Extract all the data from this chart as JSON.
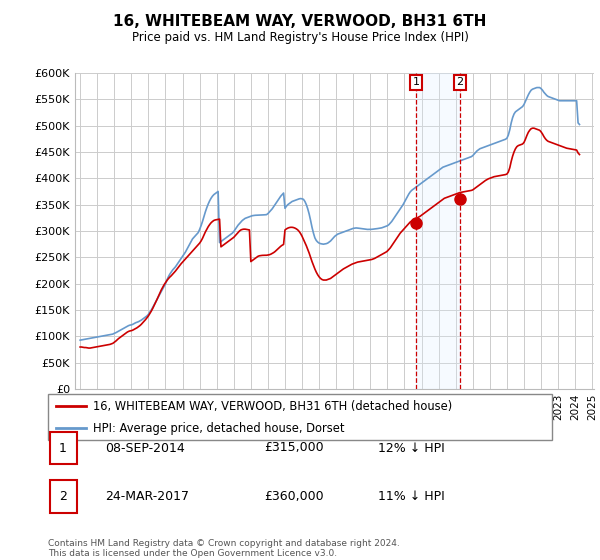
{
  "title": "16, WHITEBEAM WAY, VERWOOD, BH31 6TH",
  "subtitle": "Price paid vs. HM Land Registry's House Price Index (HPI)",
  "legend_label_red": "16, WHITEBEAM WAY, VERWOOD, BH31 6TH (detached house)",
  "legend_label_blue": "HPI: Average price, detached house, Dorset",
  "annotation1_date": "08-SEP-2014",
  "annotation1_price": "£315,000",
  "annotation1_hpi": "12% ↓ HPI",
  "annotation2_date": "24-MAR-2017",
  "annotation2_price": "£360,000",
  "annotation2_hpi": "11% ↓ HPI",
  "footer": "Contains HM Land Registry data © Crown copyright and database right 2024.\nThis data is licensed under the Open Government Licence v3.0.",
  "ylim": [
    0,
    600000
  ],
  "yticks": [
    0,
    50000,
    100000,
    150000,
    200000,
    250000,
    300000,
    350000,
    400000,
    450000,
    500000,
    550000,
    600000
  ],
  "ytick_labels": [
    "£0",
    "£50K",
    "£100K",
    "£150K",
    "£200K",
    "£250K",
    "£300K",
    "£350K",
    "£400K",
    "£450K",
    "£500K",
    "£550K",
    "£600K"
  ],
  "red_color": "#cc0000",
  "blue_color": "#6699cc",
  "vline_color": "#cc0000",
  "shade_color": "#ddeeff",
  "hpi_x": [
    1995.0,
    1995.083,
    1995.167,
    1995.25,
    1995.333,
    1995.417,
    1995.5,
    1995.583,
    1995.667,
    1995.75,
    1995.833,
    1995.917,
    1996.0,
    1996.083,
    1996.167,
    1996.25,
    1996.333,
    1996.417,
    1996.5,
    1996.583,
    1996.667,
    1996.75,
    1996.833,
    1996.917,
    1997.0,
    1997.083,
    1997.167,
    1997.25,
    1997.333,
    1997.417,
    1997.5,
    1997.583,
    1997.667,
    1997.75,
    1997.833,
    1997.917,
    1998.0,
    1998.083,
    1998.167,
    1998.25,
    1998.333,
    1998.417,
    1998.5,
    1998.583,
    1998.667,
    1998.75,
    1998.833,
    1998.917,
    1999.0,
    1999.083,
    1999.167,
    1999.25,
    1999.333,
    1999.417,
    1999.5,
    1999.583,
    1999.667,
    1999.75,
    1999.833,
    1999.917,
    2000.0,
    2000.083,
    2000.167,
    2000.25,
    2000.333,
    2000.417,
    2000.5,
    2000.583,
    2000.667,
    2000.75,
    2000.833,
    2000.917,
    2001.0,
    2001.083,
    2001.167,
    2001.25,
    2001.333,
    2001.417,
    2001.5,
    2001.583,
    2001.667,
    2001.75,
    2001.833,
    2001.917,
    2002.0,
    2002.083,
    2002.167,
    2002.25,
    2002.333,
    2002.417,
    2002.5,
    2002.583,
    2002.667,
    2002.75,
    2002.833,
    2002.917,
    2003.0,
    2003.083,
    2003.167,
    2003.25,
    2003.333,
    2003.417,
    2003.5,
    2003.583,
    2003.667,
    2003.75,
    2003.833,
    2003.917,
    2004.0,
    2004.083,
    2004.167,
    2004.25,
    2004.333,
    2004.417,
    2004.5,
    2004.583,
    2004.667,
    2004.75,
    2004.833,
    2004.917,
    2005.0,
    2005.083,
    2005.167,
    2005.25,
    2005.333,
    2005.417,
    2005.5,
    2005.583,
    2005.667,
    2005.75,
    2005.833,
    2005.917,
    2006.0,
    2006.083,
    2006.167,
    2006.25,
    2006.333,
    2006.417,
    2006.5,
    2006.583,
    2006.667,
    2006.75,
    2006.833,
    2006.917,
    2007.0,
    2007.083,
    2007.167,
    2007.25,
    2007.333,
    2007.417,
    2007.5,
    2007.583,
    2007.667,
    2007.75,
    2007.833,
    2007.917,
    2008.0,
    2008.083,
    2008.167,
    2008.25,
    2008.333,
    2008.417,
    2008.5,
    2008.583,
    2008.667,
    2008.75,
    2008.833,
    2008.917,
    2009.0,
    2009.083,
    2009.167,
    2009.25,
    2009.333,
    2009.417,
    2009.5,
    2009.583,
    2009.667,
    2009.75,
    2009.833,
    2009.917,
    2010.0,
    2010.083,
    2010.167,
    2010.25,
    2010.333,
    2010.417,
    2010.5,
    2010.583,
    2010.667,
    2010.75,
    2010.833,
    2010.917,
    2011.0,
    2011.083,
    2011.167,
    2011.25,
    2011.333,
    2011.417,
    2011.5,
    2011.583,
    2011.667,
    2011.75,
    2011.833,
    2011.917,
    2012.0,
    2012.083,
    2012.167,
    2012.25,
    2012.333,
    2012.417,
    2012.5,
    2012.583,
    2012.667,
    2012.75,
    2012.833,
    2012.917,
    2013.0,
    2013.083,
    2013.167,
    2013.25,
    2013.333,
    2013.417,
    2013.5,
    2013.583,
    2013.667,
    2013.75,
    2013.833,
    2013.917,
    2014.0,
    2014.083,
    2014.167,
    2014.25,
    2014.333,
    2014.417,
    2014.5,
    2014.583,
    2014.667,
    2014.75,
    2014.833,
    2014.917,
    2015.0,
    2015.083,
    2015.167,
    2015.25,
    2015.333,
    2015.417,
    2015.5,
    2015.583,
    2015.667,
    2015.75,
    2015.833,
    2015.917,
    2016.0,
    2016.083,
    2016.167,
    2016.25,
    2016.333,
    2016.417,
    2016.5,
    2016.583,
    2016.667,
    2016.75,
    2016.833,
    2016.917,
    2017.0,
    2017.083,
    2017.167,
    2017.25,
    2017.333,
    2017.417,
    2017.5,
    2017.583,
    2017.667,
    2017.75,
    2017.833,
    2017.917,
    2018.0,
    2018.083,
    2018.167,
    2018.25,
    2018.333,
    2018.417,
    2018.5,
    2018.583,
    2018.667,
    2018.75,
    2018.833,
    2018.917,
    2019.0,
    2019.083,
    2019.167,
    2019.25,
    2019.333,
    2019.417,
    2019.5,
    2019.583,
    2019.667,
    2019.75,
    2019.833,
    2019.917,
    2020.0,
    2020.083,
    2020.167,
    2020.25,
    2020.333,
    2020.417,
    2020.5,
    2020.583,
    2020.667,
    2020.75,
    2020.833,
    2020.917,
    2021.0,
    2021.083,
    2021.167,
    2021.25,
    2021.333,
    2021.417,
    2021.5,
    2021.583,
    2021.667,
    2021.75,
    2021.833,
    2021.917,
    2022.0,
    2022.083,
    2022.167,
    2022.25,
    2022.333,
    2022.417,
    2022.5,
    2022.583,
    2022.667,
    2022.75,
    2022.833,
    2022.917,
    2023.0,
    2023.083,
    2023.167,
    2023.25,
    2023.333,
    2023.417,
    2023.5,
    2023.583,
    2023.667,
    2023.75,
    2023.833,
    2023.917,
    2024.0,
    2024.083,
    2024.167,
    2024.25
  ],
  "hpi_y": [
    93000,
    93500,
    94000,
    94500,
    95000,
    95500,
    96000,
    96500,
    97000,
    97500,
    98000,
    98500,
    99000,
    99500,
    100000,
    100500,
    101000,
    101500,
    102000,
    102500,
    103000,
    103500,
    104000,
    104500,
    106000,
    107000,
    108500,
    110000,
    111500,
    113000,
    114500,
    116000,
    117500,
    119000,
    120500,
    121500,
    122000,
    123000,
    124500,
    126000,
    127000,
    128000,
    129500,
    131000,
    133000,
    135000,
    137000,
    139000,
    142000,
    146000,
    150000,
    155000,
    160000,
    165000,
    170000,
    175000,
    180000,
    185000,
    190000,
    195000,
    200000,
    207000,
    213000,
    218000,
    222000,
    226000,
    229000,
    232000,
    236000,
    240000,
    244000,
    248000,
    252000,
    256000,
    260000,
    265000,
    270000,
    275000,
    280000,
    285000,
    288000,
    291000,
    294000,
    297000,
    303000,
    310000,
    318000,
    327000,
    336000,
    344000,
    351000,
    357000,
    362000,
    366000,
    369000,
    371000,
    373000,
    375000,
    278000,
    280000,
    282000,
    284000,
    286000,
    288000,
    290000,
    292000,
    294000,
    296000,
    299000,
    303000,
    307000,
    311000,
    314000,
    317000,
    320000,
    322000,
    324000,
    325000,
    326000,
    327000,
    328000,
    329000,
    329500,
    329800,
    329900,
    330000,
    330000,
    330200,
    330400,
    330600,
    330800,
    331000,
    333000,
    336000,
    339000,
    342000,
    346000,
    350000,
    354000,
    358000,
    362000,
    366000,
    369000,
    372000,
    343000,
    347000,
    350000,
    352000,
    354000,
    356000,
    357000,
    358000,
    359000,
    360000,
    361000,
    361500,
    361000,
    360000,
    356000,
    350000,
    342000,
    332000,
    320000,
    307000,
    296000,
    287000,
    282000,
    279000,
    277000,
    276000,
    275500,
    275000,
    275500,
    276000,
    277000,
    279000,
    281000,
    284000,
    287000,
    290000,
    292000,
    294000,
    295000,
    296000,
    297000,
    298000,
    299000,
    300000,
    301000,
    302000,
    303000,
    304000,
    305000,
    305500,
    305800,
    305600,
    305200,
    304800,
    304400,
    304000,
    303600,
    303200,
    303000,
    303000,
    303000,
    303200,
    303500,
    303800,
    304200,
    304600,
    305000,
    305500,
    306000,
    307000,
    308000,
    309000,
    310000,
    312000,
    315000,
    318000,
    322000,
    326000,
    330000,
    334000,
    338000,
    342000,
    346000,
    350000,
    355000,
    360000,
    365000,
    370000,
    374000,
    377000,
    379000,
    381000,
    383000,
    385000,
    387000,
    389000,
    391000,
    393000,
    395000,
    397000,
    399000,
    401000,
    403000,
    405000,
    407000,
    409000,
    411000,
    413000,
    415000,
    417000,
    419000,
    421000,
    422000,
    423000,
    424000,
    425000,
    426000,
    427000,
    428000,
    429000,
    430000,
    431000,
    432000,
    433000,
    434000,
    435000,
    436000,
    437000,
    438000,
    439000,
    440000,
    441000,
    443000,
    446000,
    449000,
    452000,
    454000,
    456000,
    457000,
    458000,
    459000,
    460000,
    461000,
    462000,
    463000,
    464000,
    465000,
    466000,
    467000,
    468000,
    469000,
    470000,
    471000,
    472000,
    473000,
    474000,
    476000,
    482000,
    492000,
    505000,
    515000,
    522000,
    526000,
    528000,
    530000,
    532000,
    534000,
    536000,
    540000,
    546000,
    552000,
    558000,
    563000,
    567000,
    569000,
    570000,
    571000,
    572000,
    572000,
    572000,
    570000,
    567000,
    563000,
    560000,
    557000,
    555000,
    554000,
    553000,
    552000,
    551000,
    550000,
    549000,
    548000,
    547000,
    547000,
    547000,
    547000,
    547000,
    547000,
    547000,
    547000,
    547000,
    547000,
    547000,
    547000,
    547000,
    505000,
    502000
  ],
  "red_x": [
    1995.0,
    1995.083,
    1995.167,
    1995.25,
    1995.333,
    1995.417,
    1995.5,
    1995.583,
    1995.667,
    1995.75,
    1995.833,
    1995.917,
    1996.0,
    1996.083,
    1996.167,
    1996.25,
    1996.333,
    1996.417,
    1996.5,
    1996.583,
    1996.667,
    1996.75,
    1996.833,
    1996.917,
    1997.0,
    1997.083,
    1997.167,
    1997.25,
    1997.333,
    1997.417,
    1997.5,
    1997.583,
    1997.667,
    1997.75,
    1997.833,
    1997.917,
    1998.0,
    1998.083,
    1998.167,
    1998.25,
    1998.333,
    1998.417,
    1998.5,
    1998.583,
    1998.667,
    1998.75,
    1998.833,
    1998.917,
    1999.0,
    1999.083,
    1999.167,
    1999.25,
    1999.333,
    1999.417,
    1999.5,
    1999.583,
    1999.667,
    1999.75,
    1999.833,
    1999.917,
    2000.0,
    2000.083,
    2000.167,
    2000.25,
    2000.333,
    2000.417,
    2000.5,
    2000.583,
    2000.667,
    2000.75,
    2000.833,
    2000.917,
    2001.0,
    2001.083,
    2001.167,
    2001.25,
    2001.333,
    2001.417,
    2001.5,
    2001.583,
    2001.667,
    2001.75,
    2001.833,
    2001.917,
    2002.0,
    2002.083,
    2002.167,
    2002.25,
    2002.333,
    2002.417,
    2002.5,
    2002.583,
    2002.667,
    2002.75,
    2002.833,
    2002.917,
    2003.0,
    2003.083,
    2003.167,
    2003.25,
    2003.333,
    2003.417,
    2003.5,
    2003.583,
    2003.667,
    2003.75,
    2003.833,
    2003.917,
    2004.0,
    2004.083,
    2004.167,
    2004.25,
    2004.333,
    2004.417,
    2004.5,
    2004.583,
    2004.667,
    2004.75,
    2004.833,
    2004.917,
    2005.0,
    2005.083,
    2005.167,
    2005.25,
    2005.333,
    2005.417,
    2005.5,
    2005.583,
    2005.667,
    2005.75,
    2005.833,
    2005.917,
    2006.0,
    2006.083,
    2006.167,
    2006.25,
    2006.333,
    2006.417,
    2006.5,
    2006.583,
    2006.667,
    2006.75,
    2006.833,
    2006.917,
    2007.0,
    2007.083,
    2007.167,
    2007.25,
    2007.333,
    2007.417,
    2007.5,
    2007.583,
    2007.667,
    2007.75,
    2007.833,
    2007.917,
    2008.0,
    2008.083,
    2008.167,
    2008.25,
    2008.333,
    2008.417,
    2008.5,
    2008.583,
    2008.667,
    2008.75,
    2008.833,
    2008.917,
    2009.0,
    2009.083,
    2009.167,
    2009.25,
    2009.333,
    2009.417,
    2009.5,
    2009.583,
    2009.667,
    2009.75,
    2009.833,
    2009.917,
    2010.0,
    2010.083,
    2010.167,
    2010.25,
    2010.333,
    2010.417,
    2010.5,
    2010.583,
    2010.667,
    2010.75,
    2010.833,
    2010.917,
    2011.0,
    2011.083,
    2011.167,
    2011.25,
    2011.333,
    2011.417,
    2011.5,
    2011.583,
    2011.667,
    2011.75,
    2011.833,
    2011.917,
    2012.0,
    2012.083,
    2012.167,
    2012.25,
    2012.333,
    2012.417,
    2012.5,
    2012.583,
    2012.667,
    2012.75,
    2012.833,
    2012.917,
    2013.0,
    2013.083,
    2013.167,
    2013.25,
    2013.333,
    2013.417,
    2013.5,
    2013.583,
    2013.667,
    2013.75,
    2013.833,
    2013.917,
    2014.0,
    2014.083,
    2014.167,
    2014.25,
    2014.333,
    2014.417,
    2014.5,
    2014.583,
    2014.667,
    2014.75,
    2014.833,
    2014.917,
    2015.0,
    2015.083,
    2015.167,
    2015.25,
    2015.333,
    2015.417,
    2015.5,
    2015.583,
    2015.667,
    2015.75,
    2015.833,
    2015.917,
    2016.0,
    2016.083,
    2016.167,
    2016.25,
    2016.333,
    2016.417,
    2016.5,
    2016.583,
    2016.667,
    2016.75,
    2016.833,
    2016.917,
    2017.0,
    2017.083,
    2017.167,
    2017.25,
    2017.333,
    2017.417,
    2017.5,
    2017.583,
    2017.667,
    2017.75,
    2017.833,
    2017.917,
    2018.0,
    2018.083,
    2018.167,
    2018.25,
    2018.333,
    2018.417,
    2018.5,
    2018.583,
    2018.667,
    2018.75,
    2018.833,
    2018.917,
    2019.0,
    2019.083,
    2019.167,
    2019.25,
    2019.333,
    2019.417,
    2019.5,
    2019.583,
    2019.667,
    2019.75,
    2019.833,
    2019.917,
    2020.0,
    2020.083,
    2020.167,
    2020.25,
    2020.333,
    2020.417,
    2020.5,
    2020.583,
    2020.667,
    2020.75,
    2020.833,
    2020.917,
    2021.0,
    2021.083,
    2021.167,
    2021.25,
    2021.333,
    2021.417,
    2021.5,
    2021.583,
    2021.667,
    2021.75,
    2021.833,
    2021.917,
    2022.0,
    2022.083,
    2022.167,
    2022.25,
    2022.333,
    2022.417,
    2022.5,
    2022.583,
    2022.667,
    2022.75,
    2022.833,
    2022.917,
    2023.0,
    2023.083,
    2023.167,
    2023.25,
    2023.333,
    2023.417,
    2023.5,
    2023.583,
    2023.667,
    2023.75,
    2023.833,
    2023.917,
    2024.0,
    2024.083,
    2024.167,
    2024.25
  ],
  "red_y": [
    80000,
    80000,
    79500,
    79000,
    79000,
    78500,
    78000,
    78000,
    78500,
    79000,
    79500,
    80000,
    80500,
    81000,
    81500,
    82000,
    82500,
    83000,
    83500,
    84000,
    84500,
    85000,
    86000,
    87000,
    89000,
    91000,
    93500,
    96000,
    98000,
    100000,
    102000,
    104000,
    106000,
    108000,
    109500,
    110500,
    111000,
    112000,
    113500,
    115000,
    116500,
    118500,
    120500,
    123000,
    126000,
    129000,
    132000,
    135500,
    139000,
    143500,
    148000,
    153000,
    158500,
    164000,
    170000,
    176000,
    182000,
    188000,
    193000,
    198000,
    202000,
    206000,
    209500,
    212500,
    215000,
    218000,
    221000,
    224000,
    227500,
    231000,
    234500,
    238000,
    241000,
    244000,
    247000,
    250000,
    253000,
    256000,
    259000,
    262000,
    265000,
    268000,
    271000,
    274000,
    277000,
    281000,
    286000,
    292000,
    298000,
    303000,
    308000,
    312000,
    315500,
    318000,
    320000,
    321000,
    321500,
    322000,
    322500,
    270000,
    272000,
    274000,
    276000,
    278000,
    280000,
    282000,
    284000,
    286000,
    288000,
    291000,
    294000,
    297000,
    300000,
    302000,
    303000,
    303500,
    303500,
    303000,
    302500,
    302000,
    242000,
    244000,
    246000,
    248000,
    250000,
    252000,
    253000,
    253500,
    253800,
    254000,
    254000,
    254000,
    254500,
    255000,
    256000,
    257500,
    259000,
    261000,
    263500,
    266000,
    268500,
    271000,
    273000,
    274500,
    302000,
    304000,
    305500,
    306500,
    307000,
    307000,
    306500,
    305500,
    304000,
    302000,
    299000,
    295000,
    290000,
    284000,
    278000,
    272000,
    265000,
    258000,
    250000,
    242000,
    235000,
    228000,
    222000,
    217000,
    213000,
    210000,
    208000,
    207000,
    207000,
    207000,
    208000,
    209000,
    210000,
    212000,
    214000,
    216000,
    218000,
    220000,
    222000,
    224000,
    226000,
    228000,
    229500,
    231000,
    232500,
    234000,
    235500,
    237000,
    238000,
    239000,
    240000,
    241000,
    241500,
    242000,
    242500,
    243000,
    243500,
    244000,
    244500,
    245000,
    245500,
    246000,
    247000,
    248000,
    249500,
    251000,
    252500,
    254000,
    255500,
    257000,
    258500,
    260000,
    262000,
    265000,
    268000,
    272000,
    276000,
    280000,
    284000,
    288000,
    292000,
    296000,
    299000,
    302000,
    305000,
    308000,
    311000,
    314000,
    317000,
    319000,
    320500,
    322000,
    323500,
    325000,
    326500,
    328000,
    330000,
    332000,
    334000,
    336000,
    338000,
    340000,
    342000,
    344000,
    346000,
    348000,
    350000,
    352000,
    354000,
    356000,
    358000,
    360000,
    362000,
    363000,
    364000,
    365000,
    366000,
    367000,
    368000,
    369000,
    370000,
    371000,
    372000,
    373000,
    373500,
    374000,
    374500,
    375000,
    375500,
    376000,
    376500,
    377000,
    378000,
    380000,
    382000,
    384000,
    386000,
    388000,
    390000,
    392000,
    394000,
    396000,
    397500,
    399000,
    400000,
    401000,
    402000,
    403000,
    403500,
    404000,
    404500,
    405000,
    405500,
    406000,
    406500,
    407000,
    408000,
    412000,
    420000,
    432000,
    442000,
    450000,
    456000,
    460000,
    462000,
    463000,
    464000,
    465000,
    468000,
    474000,
    481000,
    487000,
    491000,
    494000,
    495000,
    495000,
    494000,
    493000,
    492000,
    491000,
    488000,
    484000,
    479000,
    475000,
    472000,
    470000,
    469000,
    468000,
    467000,
    466000,
    465000,
    464000,
    463000,
    462000,
    461000,
    460000,
    459000,
    458000,
    457000,
    456500,
    456000,
    455500,
    455000,
    454500,
    454000,
    453500,
    448000,
    445000
  ],
  "sale1_x": 2014.667,
  "sale1_y": 315000,
  "sale2_x": 2017.25,
  "sale2_y": 360000,
  "vline1_x": 2014.667,
  "vline2_x": 2017.25,
  "xmin": 1994.7,
  "xmax": 2025.1,
  "xticks": [
    1995,
    1996,
    1997,
    1998,
    1999,
    2000,
    2001,
    2002,
    2003,
    2004,
    2005,
    2006,
    2007,
    2008,
    2009,
    2010,
    2011,
    2012,
    2013,
    2014,
    2015,
    2016,
    2017,
    2018,
    2019,
    2020,
    2021,
    2022,
    2023,
    2024,
    2025
  ]
}
